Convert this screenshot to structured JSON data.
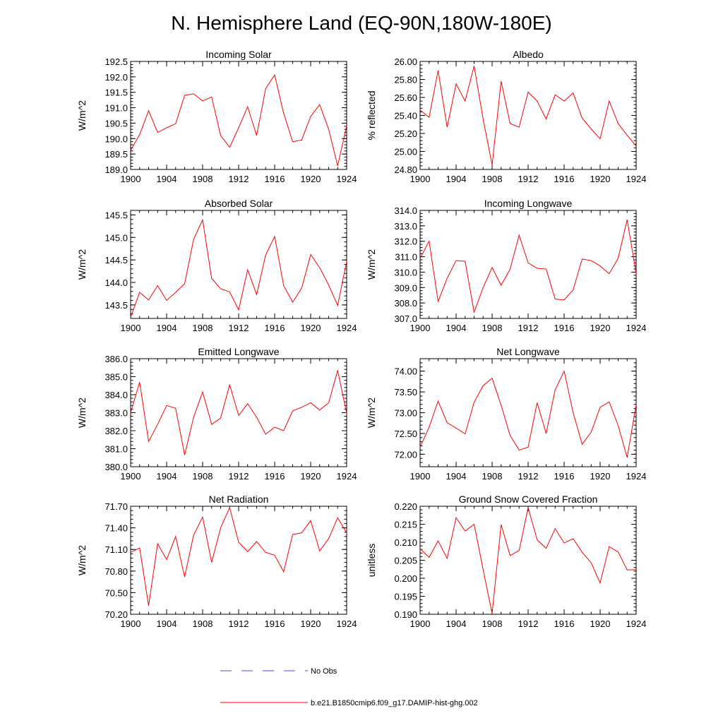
{
  "page_title": "N. Hemisphere Land (EQ-90N,180W-180E)",
  "legend": {
    "items": [
      {
        "label": "No Obs",
        "color": "#4a4aff",
        "style": "dashed"
      },
      {
        "label": "b.e21.B1850cmip6.f09_g17.DAMIP-hist-ghg.002",
        "color": "#ff0000",
        "style": "solid"
      }
    ]
  },
  "chart_data": [
    {
      "type": "line",
      "title": "Incoming Solar",
      "ylabel": "W/m^2",
      "xlim": [
        1900,
        1924
      ],
      "ylim": [
        189.0,
        192.5
      ],
      "yticks": [
        189.0,
        189.5,
        190.0,
        190.5,
        191.0,
        191.5,
        192.0,
        192.5
      ],
      "ytick_labels": [
        "189.0",
        "189.5",
        "190.0",
        "190.5",
        "191.0",
        "191.5",
        "192.0",
        "192.5"
      ],
      "xticks": [
        1900,
        1904,
        1908,
        1912,
        1916,
        1920,
        1924
      ],
      "xtick_labels": [
        "1900",
        "1904",
        "1908",
        "1912",
        "1916",
        "1920",
        "1924"
      ],
      "series": [
        {
          "color": "#ff0000",
          "x": [
            1900,
            1901,
            1902,
            1903,
            1904,
            1905,
            1906,
            1907,
            1908,
            1909,
            1910,
            1911,
            1912,
            1913,
            1914,
            1915,
            1916,
            1917,
            1918,
            1919,
            1920,
            1921,
            1922,
            1923,
            1924
          ],
          "values": [
            189.62,
            190.13,
            190.9,
            190.2,
            190.35,
            190.48,
            191.4,
            191.45,
            191.22,
            191.35,
            190.1,
            189.72,
            190.35,
            191.03,
            190.1,
            191.62,
            192.06,
            190.82,
            189.9,
            189.95,
            190.72,
            191.1,
            190.3,
            189.12,
            190.42
          ]
        }
      ]
    },
    {
      "type": "line",
      "title": "Albedo",
      "ylabel": "% reflected",
      "xlim": [
        1900,
        1924
      ],
      "ylim": [
        24.8,
        26.0
      ],
      "yticks": [
        24.8,
        25.0,
        25.2,
        25.4,
        25.6,
        25.8,
        26.0
      ],
      "ytick_labels": [
        "24.80",
        "25.00",
        "25.20",
        "25.40",
        "25.60",
        "25.80",
        "26.00"
      ],
      "xticks": [
        1900,
        1904,
        1908,
        1912,
        1916,
        1920,
        1924
      ],
      "xtick_labels": [
        "1900",
        "1904",
        "1908",
        "1912",
        "1916",
        "1920",
        "1924"
      ],
      "series": [
        {
          "color": "#ff0000",
          "x": [
            1900,
            1901,
            1902,
            1903,
            1904,
            1905,
            1906,
            1907,
            1908,
            1909,
            1910,
            1911,
            1912,
            1913,
            1914,
            1915,
            1916,
            1917,
            1918,
            1919,
            1920,
            1921,
            1922,
            1923,
            1924
          ],
          "values": [
            25.46,
            25.38,
            25.9,
            25.27,
            25.75,
            25.56,
            25.95,
            25.36,
            24.85,
            25.78,
            25.31,
            25.27,
            25.66,
            25.56,
            25.36,
            25.63,
            25.56,
            25.65,
            25.37,
            25.25,
            25.14,
            25.56,
            25.31,
            25.18,
            25.06
          ]
        }
      ]
    },
    {
      "type": "line",
      "title": "Absorbed Solar",
      "ylabel": "W/m^2",
      "xlim": [
        1900,
        1924
      ],
      "ylim": [
        143.2,
        145.6
      ],
      "yticks": [
        143.5,
        144.0,
        144.5,
        145.0,
        145.5
      ],
      "ytick_labels": [
        "143.5",
        "144.0",
        "144.5",
        "145.0",
        "145.5"
      ],
      "xticks": [
        1900,
        1904,
        1908,
        1912,
        1916,
        1920,
        1924
      ],
      "xtick_labels": [
        "1900",
        "1904",
        "1908",
        "1912",
        "1916",
        "1920",
        "1924"
      ],
      "series": [
        {
          "color": "#ff0000",
          "x": [
            1900,
            1901,
            1902,
            1903,
            1904,
            1905,
            1906,
            1907,
            1908,
            1909,
            1910,
            1911,
            1912,
            1913,
            1914,
            1915,
            1916,
            1917,
            1918,
            1919,
            1920,
            1921,
            1922,
            1923,
            1924
          ],
          "values": [
            143.23,
            143.78,
            143.61,
            143.93,
            143.6,
            143.78,
            143.97,
            144.96,
            145.39,
            144.09,
            143.86,
            143.79,
            143.39,
            144.28,
            143.73,
            144.61,
            145.02,
            143.93,
            143.56,
            143.87,
            144.62,
            144.33,
            143.94,
            143.49,
            144.47
          ]
        }
      ]
    },
    {
      "type": "line",
      "title": "Incoming Longwave",
      "ylabel": "W/m^2",
      "xlim": [
        1900,
        1924
      ],
      "ylim": [
        307.0,
        314.0
      ],
      "yticks": [
        307.0,
        308.0,
        309.0,
        310.0,
        311.0,
        312.0,
        313.0,
        314.0
      ],
      "ytick_labels": [
        "307.0",
        "308.0",
        "309.0",
        "310.0",
        "311.0",
        "312.0",
        "313.0",
        "314.0"
      ],
      "xticks": [
        1900,
        1904,
        1908,
        1912,
        1916,
        1920,
        1924
      ],
      "xtick_labels": [
        "1900",
        "1904",
        "1908",
        "1912",
        "1916",
        "1920",
        "1924"
      ],
      "series": [
        {
          "color": "#ff0000",
          "x": [
            1900,
            1901,
            1902,
            1903,
            1904,
            1905,
            1906,
            1907,
            1908,
            1909,
            1910,
            1911,
            1912,
            1913,
            1914,
            1915,
            1916,
            1917,
            1918,
            1919,
            1920,
            1921,
            1922,
            1923,
            1924
          ],
          "values": [
            310.9,
            312.0,
            308.1,
            309.6,
            310.75,
            310.7,
            307.4,
            309.0,
            310.3,
            309.15,
            310.2,
            312.4,
            310.6,
            310.25,
            310.2,
            308.25,
            308.2,
            308.85,
            310.85,
            310.75,
            310.4,
            309.9,
            310.9,
            313.4,
            309.9
          ]
        }
      ]
    },
    {
      "type": "line",
      "title": "Emitted Longwave",
      "ylabel": "W/m^2",
      "xlim": [
        1900,
        1924
      ],
      "ylim": [
        380.0,
        386.0
      ],
      "yticks": [
        380.0,
        381.0,
        382.0,
        383.0,
        384.0,
        385.0,
        386.0
      ],
      "ytick_labels": [
        "380.0",
        "381.0",
        "382.0",
        "383.0",
        "384.0",
        "385.0",
        "386.0"
      ],
      "xticks": [
        1900,
        1904,
        1908,
        1912,
        1916,
        1920,
        1924
      ],
      "xtick_labels": [
        "1900",
        "1904",
        "1908",
        "1912",
        "1916",
        "1920",
        "1924"
      ],
      "series": [
        {
          "color": "#ff0000",
          "x": [
            1900,
            1901,
            1902,
            1903,
            1904,
            1905,
            1906,
            1907,
            1908,
            1909,
            1910,
            1911,
            1912,
            1913,
            1914,
            1915,
            1916,
            1917,
            1918,
            1919,
            1920,
            1921,
            1922,
            1923,
            1924
          ],
          "values": [
            383.0,
            384.7,
            381.4,
            382.35,
            383.4,
            383.25,
            380.65,
            382.75,
            384.15,
            382.35,
            382.7,
            384.55,
            382.85,
            383.5,
            382.75,
            381.8,
            382.2,
            382.0,
            383.1,
            383.3,
            383.55,
            383.15,
            383.55,
            385.35,
            382.95
          ]
        }
      ]
    },
    {
      "type": "line",
      "title": "Net Longwave",
      "ylabel": "W/m^2",
      "xlim": [
        1900,
        1924
      ],
      "ylim": [
        71.7,
        74.3
      ],
      "yticks": [
        72.0,
        72.5,
        73.0,
        73.5,
        74.0
      ],
      "ytick_labels": [
        "72.00",
        "72.50",
        "73.00",
        "73.50",
        "74.00"
      ],
      "xticks": [
        1900,
        1904,
        1908,
        1912,
        1916,
        1920,
        1924
      ],
      "xtick_labels": [
        "1900",
        "1904",
        "1908",
        "1912",
        "1916",
        "1920",
        "1924"
      ],
      "series": [
        {
          "color": "#ff0000",
          "x": [
            1900,
            1901,
            1902,
            1903,
            1904,
            1905,
            1906,
            1907,
            1908,
            1909,
            1910,
            1911,
            1912,
            1913,
            1914,
            1915,
            1916,
            1917,
            1918,
            1919,
            1920,
            1921,
            1922,
            1923,
            1924
          ],
          "values": [
            72.17,
            72.65,
            73.28,
            72.76,
            72.63,
            72.49,
            73.25,
            73.65,
            73.83,
            73.18,
            72.45,
            72.1,
            72.17,
            73.24,
            72.5,
            73.55,
            74.0,
            73.0,
            72.24,
            72.53,
            73.13,
            73.26,
            72.69,
            71.92,
            73.2
          ]
        }
      ]
    },
    {
      "type": "line",
      "title": "Net Radiation",
      "ylabel": "W/m^2",
      "xlim": [
        1900,
        1924
      ],
      "ylim": [
        70.2,
        71.7
      ],
      "yticks": [
        70.2,
        70.5,
        70.8,
        71.1,
        71.4,
        71.7
      ],
      "ytick_labels": [
        "70.20",
        "70.50",
        "70.80",
        "71.10",
        "71.40",
        "71.70"
      ],
      "xticks": [
        1900,
        1904,
        1908,
        1912,
        1916,
        1920,
        1924
      ],
      "xtick_labels": [
        "1900",
        "1904",
        "1908",
        "1912",
        "1916",
        "1920",
        "1924"
      ],
      "series": [
        {
          "color": "#ff0000",
          "x": [
            1900,
            1901,
            1902,
            1903,
            1904,
            1905,
            1906,
            1907,
            1908,
            1909,
            1910,
            1911,
            1912,
            1913,
            1914,
            1915,
            1916,
            1917,
            1918,
            1919,
            1920,
            1921,
            1922,
            1923,
            1924
          ],
          "values": [
            71.06,
            71.12,
            70.32,
            71.18,
            70.96,
            71.28,
            70.72,
            71.3,
            71.55,
            70.92,
            71.4,
            71.68,
            71.2,
            71.07,
            71.21,
            71.06,
            71.02,
            70.79,
            71.31,
            71.33,
            71.5,
            71.08,
            71.25,
            71.54,
            71.33
          ]
        }
      ]
    },
    {
      "type": "line",
      "title": "Ground Snow Covered Fraction",
      "ylabel": "unitless",
      "xlim": [
        1900,
        1924
      ],
      "ylim": [
        0.19,
        0.22
      ],
      "yticks": [
        0.19,
        0.195,
        0.2,
        0.205,
        0.21,
        0.215,
        0.22
      ],
      "ytick_labels": [
        "0.190",
        "0.195",
        "0.200",
        "0.205",
        "0.210",
        "0.215",
        "0.220"
      ],
      "xticks": [
        1900,
        1904,
        1908,
        1912,
        1916,
        1920,
        1924
      ],
      "xtick_labels": [
        "1900",
        "1904",
        "1908",
        "1912",
        "1916",
        "1920",
        "1924"
      ],
      "series": [
        {
          "color": "#ff0000",
          "x": [
            1900,
            1901,
            1902,
            1903,
            1904,
            1905,
            1906,
            1907,
            1908,
            1909,
            1910,
            1911,
            1912,
            1913,
            1914,
            1915,
            1916,
            1917,
            1918,
            1919,
            1920,
            1921,
            1922,
            1923,
            1924
          ],
          "values": [
            0.2082,
            0.2058,
            0.2104,
            0.2055,
            0.2168,
            0.2131,
            0.215,
            0.2024,
            0.1902,
            0.2149,
            0.2063,
            0.2077,
            0.2196,
            0.2107,
            0.2083,
            0.2138,
            0.2098,
            0.211,
            0.2072,
            0.2043,
            0.1987,
            0.2088,
            0.2073,
            0.2023,
            0.2024
          ]
        }
      ]
    }
  ]
}
